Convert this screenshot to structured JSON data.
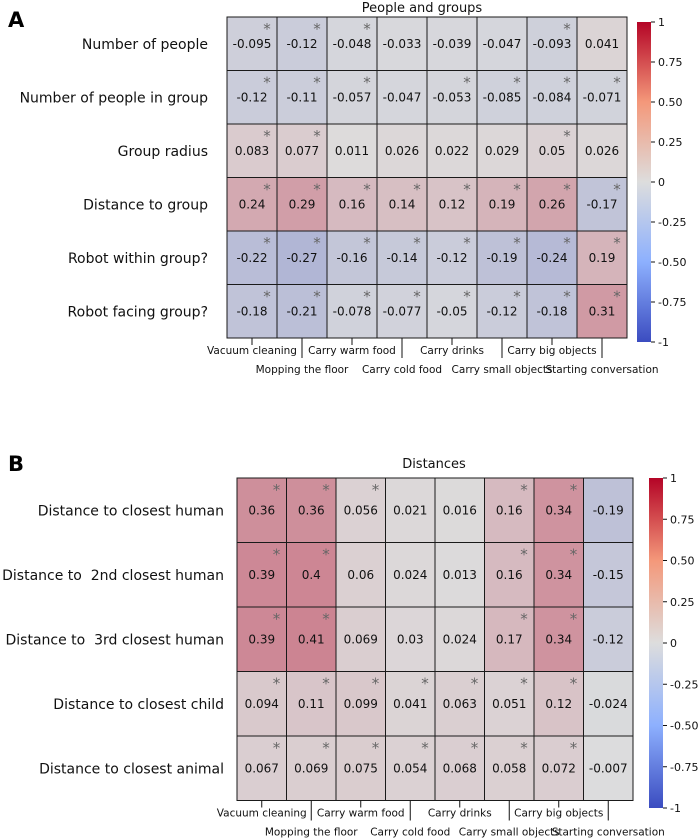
{
  "chart_data": [
    {
      "type": "heatmap",
      "panel_label": "A",
      "title": "People and groups",
      "rows": [
        "Number of people",
        "Number of people in group",
        "Group radius",
        "Distance to group",
        "Robot within group?",
        "Robot facing group?"
      ],
      "columns": [
        "Vacuum cleaning",
        "Mopping the floor",
        "Carry warm food",
        "Carry cold food",
        "Carry drinks",
        "Carry small objects",
        "Carry big objects",
        "Starting conversation"
      ],
      "value_labels": [
        [
          "-0.095",
          "-0.12",
          "-0.048",
          "-0.033",
          "-0.039",
          "-0.047",
          "-0.093",
          "0.041"
        ],
        [
          "-0.12",
          "-0.11",
          "-0.057",
          "-0.047",
          "-0.053",
          "-0.085",
          "-0.084",
          "-0.071"
        ],
        [
          "0.083",
          "0.077",
          "0.011",
          "0.026",
          "0.022",
          "0.029",
          "0.05",
          "0.026"
        ],
        [
          "0.24",
          "0.29",
          "0.16",
          "0.14",
          "0.12",
          "0.19",
          "0.26",
          "-0.17"
        ],
        [
          "-0.22",
          "-0.27",
          "-0.16",
          "-0.14",
          "-0.12",
          "-0.19",
          "-0.24",
          "0.19"
        ],
        [
          "-0.18",
          "-0.21",
          "-0.078",
          "-0.077",
          "-0.05",
          "-0.12",
          "-0.18",
          "0.31"
        ]
      ],
      "significant": [
        [
          1,
          1,
          1,
          0,
          0,
          0,
          1,
          0
        ],
        [
          1,
          1,
          1,
          0,
          1,
          1,
          1,
          1
        ],
        [
          1,
          1,
          0,
          0,
          0,
          0,
          1,
          0
        ],
        [
          1,
          1,
          1,
          1,
          1,
          1,
          1,
          1
        ],
        [
          1,
          1,
          1,
          1,
          1,
          1,
          1,
          1
        ],
        [
          1,
          1,
          1,
          1,
          1,
          1,
          1,
          1
        ]
      ],
      "significance_marker": "*",
      "colorbar": {
        "range": [
          -1,
          1
        ],
        "ticks": [
          "1",
          "0.75",
          "0.50",
          "0.25",
          "0",
          "-0.25",
          "-0.50",
          "-0.75",
          "-1"
        ],
        "colormap": [
          "#3b4cc0",
          "#dddddd",
          "#b40426"
        ]
      }
    },
    {
      "type": "heatmap",
      "panel_label": "B",
      "title": "Distances",
      "rows": [
        "Distance to closest human",
        "Distance to  2nd closest human",
        "Distance to  3rd closest human",
        "Distance to closest child",
        "Distance to closest animal"
      ],
      "columns": [
        "Vacuum cleaning",
        "Mopping the floor",
        "Carry warm food",
        "Carry cold food",
        "Carry drinks",
        "Carry small objects",
        "Carry big objects",
        "Starting conversation"
      ],
      "value_labels": [
        [
          "0.36",
          "0.36",
          "0.056",
          "0.021",
          "0.016",
          "0.16",
          "0.34",
          "-0.19"
        ],
        [
          "0.39",
          "0.4",
          "0.06",
          "0.024",
          "0.013",
          "0.16",
          "0.34",
          "-0.15"
        ],
        [
          "0.39",
          "0.41",
          "0.069",
          "0.03",
          "0.024",
          "0.17",
          "0.34",
          "-0.12"
        ],
        [
          "0.094",
          "0.11",
          "0.099",
          "0.041",
          "0.063",
          "0.051",
          "0.12",
          "-0.024"
        ],
        [
          "0.067",
          "0.069",
          "0.075",
          "0.054",
          "0.068",
          "0.058",
          "0.072",
          "-0.007"
        ]
      ],
      "significant": [
        [
          1,
          1,
          1,
          0,
          0,
          1,
          1,
          0
        ],
        [
          1,
          1,
          0,
          0,
          0,
          1,
          1,
          0
        ],
        [
          1,
          1,
          0,
          0,
          0,
          1,
          1,
          0
        ],
        [
          1,
          1,
          1,
          1,
          1,
          1,
          1,
          0
        ],
        [
          1,
          1,
          1,
          1,
          1,
          1,
          1,
          0
        ]
      ],
      "significance_marker": "*",
      "colorbar": {
        "range": [
          -1,
          1
        ],
        "ticks": [
          "1",
          "0.75",
          "0.50",
          "0.25",
          "0",
          "-0.25",
          "-0.50",
          "-0.75",
          "-1"
        ],
        "colormap": [
          "#3b4cc0",
          "#dddddd",
          "#b40426"
        ]
      }
    }
  ]
}
